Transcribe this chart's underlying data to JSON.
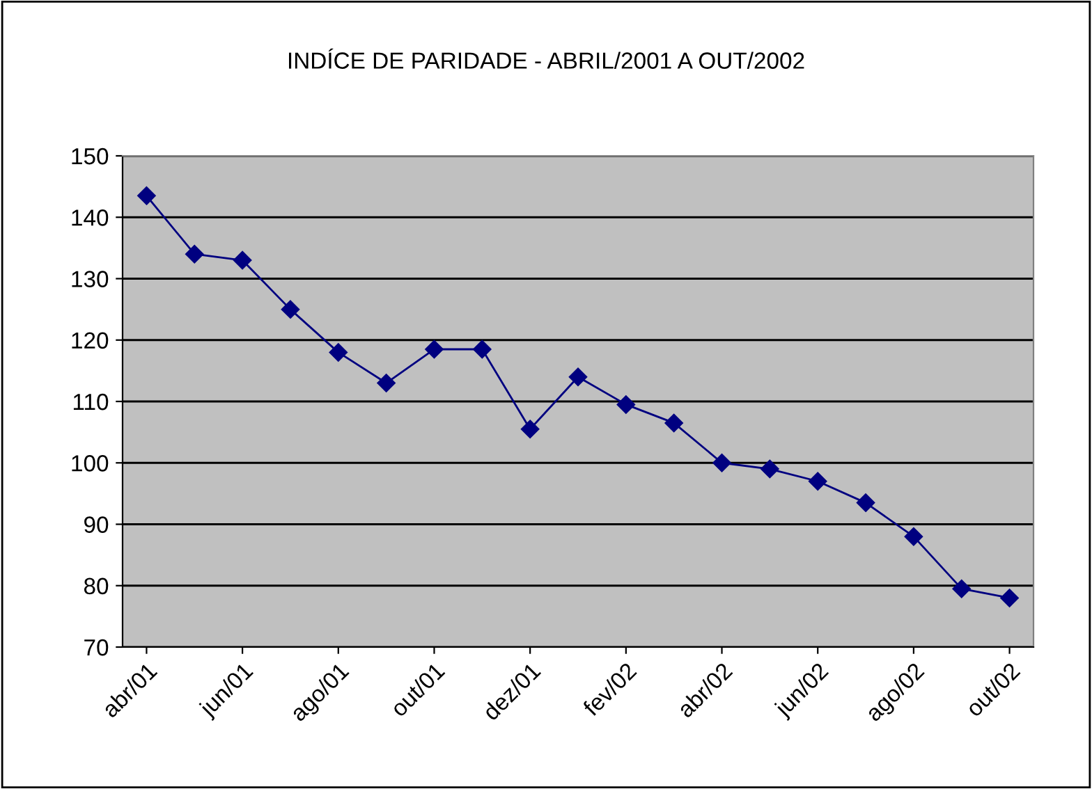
{
  "chart_data": {
    "type": "line",
    "title": "INDÍCE DE PARIDADE - ABRIL/2001 A OUT/2002",
    "categories": [
      "abr/01",
      null,
      "jun/01",
      null,
      "ago/01",
      null,
      "out/01",
      null,
      "dez/01",
      null,
      "fev/02",
      null,
      "abr/02",
      null,
      "jun/02",
      null,
      "ago/02",
      null,
      "out/02"
    ],
    "series": [
      {
        "color": "#000080",
        "values": [
          143.5,
          134,
          133,
          125,
          118,
          113,
          118.5,
          118.5,
          105.5,
          114,
          109.5,
          106.5,
          100,
          99,
          97,
          93.5,
          88,
          79.5,
          78
        ]
      }
    ],
    "ylim": [
      70,
      150
    ],
    "yticks": [
      70,
      80,
      90,
      100,
      110,
      120,
      130,
      140,
      150
    ],
    "grid": "y",
    "legend": false,
    "marker": "diamond",
    "line_style": "solid"
  }
}
